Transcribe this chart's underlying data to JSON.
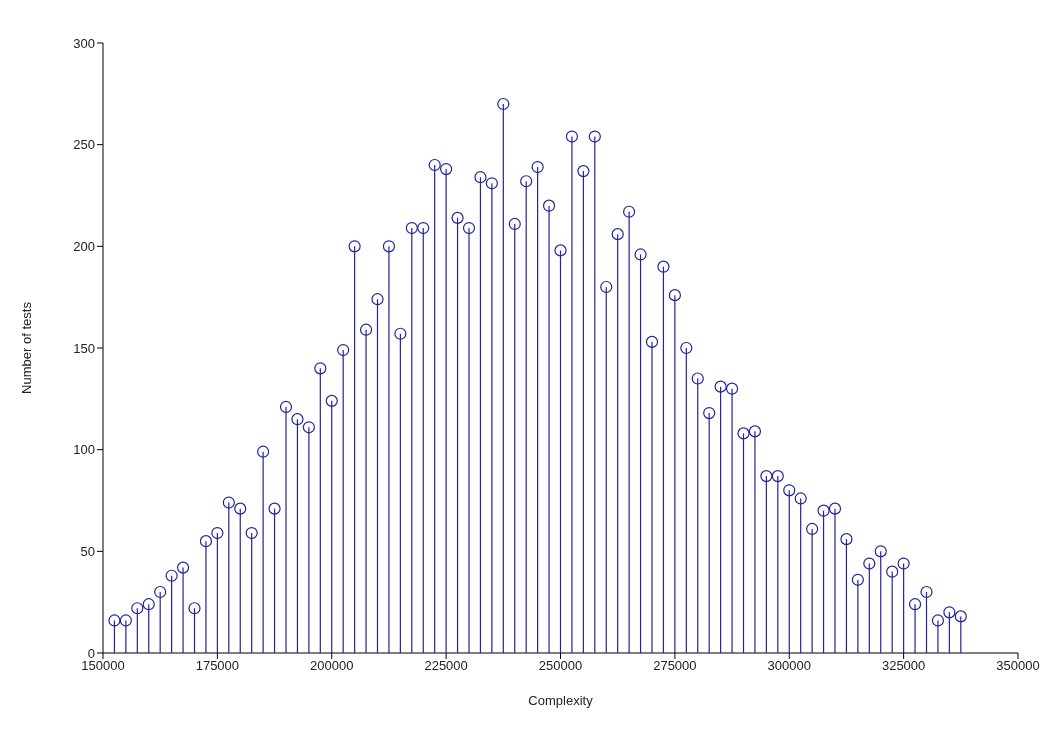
{
  "chart_data": {
    "type": "lollipop",
    "xlabel": "Complexity",
    "ylabel": "Number of tests",
    "x": [
      152500,
      155000,
      157500,
      160000,
      162500,
      165000,
      167500,
      170000,
      172500,
      175000,
      177500,
      180000,
      182500,
      185000,
      187500,
      190000,
      192500,
      195000,
      197500,
      200000,
      202500,
      205000,
      207500,
      210000,
      212500,
      215000,
      217500,
      220000,
      222500,
      225000,
      227500,
      230000,
      232500,
      235000,
      237500,
      240000,
      242500,
      245000,
      247500,
      250000,
      252500,
      255000,
      257500,
      260000,
      262500,
      265000,
      267500,
      270000,
      272500,
      275000,
      277500,
      280000,
      282500,
      285000,
      287500,
      290000,
      292500,
      295000,
      297500,
      300000,
      302500,
      305000,
      307500,
      310000,
      312500,
      315000,
      317500,
      320000,
      322500,
      325000,
      327500,
      330000,
      332500,
      335000,
      337500
    ],
    "values": [
      16,
      16,
      22,
      24,
      30,
      38,
      42,
      22,
      55,
      59,
      74,
      71,
      59,
      99,
      71,
      121,
      115,
      111,
      140,
      124,
      149,
      200,
      159,
      174,
      200,
      157,
      209,
      209,
      240,
      238,
      214,
      209,
      234,
      231,
      270,
      211,
      232,
      239,
      220,
      198,
      254,
      237,
      254,
      180,
      206,
      217,
      196,
      153,
      190,
      176,
      150,
      135,
      118,
      131,
      130,
      108,
      109,
      87,
      87,
      80,
      76,
      61,
      70,
      71,
      56,
      36,
      44,
      50,
      40,
      44,
      24,
      30,
      16,
      20,
      18
    ],
    "color": "#23239a",
    "marker": "circle",
    "xlim": [
      150000,
      350000
    ],
    "xticks": [
      150000,
      175000,
      200000,
      225000,
      250000,
      275000,
      300000,
      325000,
      350000
    ],
    "ylim": [
      0,
      300
    ],
    "yticks": [
      0,
      50,
      100,
      150,
      200,
      250,
      300
    ],
    "grid": false,
    "legend": false
  }
}
